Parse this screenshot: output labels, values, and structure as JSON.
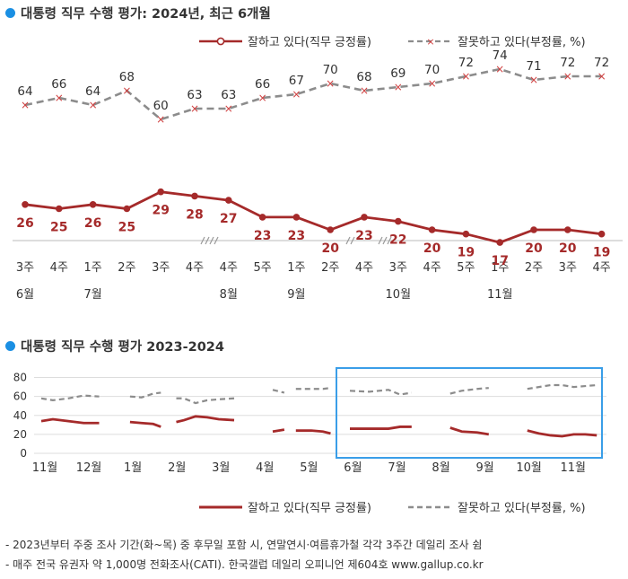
{
  "chart_data": [
    {
      "type": "line",
      "title": "대통령 직무 수행 평가: 2024년, 최근 6개월",
      "categories": [
        "3주",
        "4주",
        "1주",
        "2주",
        "3주",
        "4주",
        "4주",
        "5주",
        "1주",
        "2주",
        "4주",
        "3주",
        "4주",
        "5주",
        "1주",
        "2주",
        "3주",
        "4주"
      ],
      "month_labels": [
        {
          "index": 0,
          "label": "6월"
        },
        {
          "index": 2,
          "label": "7월"
        },
        {
          "index": 6,
          "label": "8월"
        },
        {
          "index": 8,
          "label": "9월"
        },
        {
          "index": 11,
          "label": "10월"
        },
        {
          "index": 14,
          "label": "11월"
        }
      ],
      "series": [
        {
          "name": "잘하고 있다(직무 긍정률)",
          "color": "#a52a2a",
          "style": "solid",
          "values": [
            26,
            25,
            26,
            25,
            29,
            28,
            27,
            23,
            23,
            20,
            23,
            22,
            20,
            19,
            17,
            20,
            20,
            19
          ]
        },
        {
          "name": "잘못하고 있다(부정률, %)",
          "color": "#8c8c8c",
          "style": "dashed",
          "values": [
            64,
            66,
            64,
            68,
            60,
            63,
            63,
            66,
            67,
            70,
            68,
            69,
            70,
            72,
            74,
            71,
            72,
            72
          ]
        }
      ],
      "ylim": [
        0,
        80
      ],
      "legend": "top-right"
    },
    {
      "type": "line",
      "title": "대통령 직무 수행 평가 2023-2024",
      "x_labels": [
        "11월",
        "12월",
        "1월",
        "2월",
        "3월",
        "4월",
        "5월",
        "6월",
        "7월",
        "8월",
        "9월",
        "10월",
        "11월"
      ],
      "y_ticks": [
        0,
        20,
        40,
        60,
        80
      ],
      "ylim": [
        0,
        90
      ],
      "grid": true,
      "legend": "bottom",
      "series": [
        {
          "name": "잘하고 있다(직무 긍정률)",
          "color": "#a52a2a",
          "style": "solid",
          "segments": [
            [
              [
                0.0,
                34
              ],
              [
                0.3,
                36
              ],
              [
                0.7,
                34
              ],
              [
                1.1,
                32
              ],
              [
                1.5,
                32
              ]
            ],
            [
              [
                2.3,
                33
              ],
              [
                2.6,
                32
              ],
              [
                2.9,
                31
              ],
              [
                3.1,
                28
              ]
            ],
            [
              [
                3.5,
                33
              ],
              [
                3.7,
                35
              ],
              [
                4.0,
                39
              ],
              [
                4.3,
                38
              ],
              [
                4.6,
                36
              ],
              [
                5.0,
                35
              ]
            ],
            [
              [
                6.0,
                23
              ],
              [
                6.3,
                25
              ]
            ],
            [
              [
                6.6,
                24
              ],
              [
                7.0,
                24
              ],
              [
                7.3,
                23
              ],
              [
                7.5,
                21
              ]
            ],
            [
              [
                8.0,
                26
              ],
              [
                8.5,
                26
              ],
              [
                9.0,
                26
              ],
              [
                9.3,
                28
              ],
              [
                9.6,
                28
              ]
            ],
            [
              [
                10.6,
                27
              ],
              [
                10.9,
                23
              ],
              [
                11.3,
                22
              ],
              [
                11.6,
                20
              ]
            ],
            [
              [
                12.6,
                24
              ],
              [
                12.9,
                21
              ],
              [
                13.2,
                19
              ],
              [
                13.5,
                18
              ],
              [
                13.8,
                20
              ],
              [
                14.1,
                20
              ],
              [
                14.4,
                19
              ]
            ]
          ]
        },
        {
          "name": "잘못하고 있다(부정률, %)",
          "color": "#8c8c8c",
          "style": "dashed",
          "segments": [
            [
              [
                0.0,
                58
              ],
              [
                0.3,
                56
              ],
              [
                0.7,
                58
              ],
              [
                1.1,
                61
              ],
              [
                1.5,
                60
              ]
            ],
            [
              [
                2.3,
                60
              ],
              [
                2.6,
                59
              ],
              [
                2.9,
                63
              ],
              [
                3.1,
                64
              ]
            ],
            [
              [
                3.5,
                58
              ],
              [
                3.7,
                58
              ],
              [
                4.0,
                53
              ],
              [
                4.3,
                56
              ],
              [
                4.6,
                57
              ],
              [
                5.0,
                58
              ]
            ],
            [
              [
                6.0,
                67
              ],
              [
                6.3,
                64
              ]
            ],
            [
              [
                6.6,
                68
              ],
              [
                7.0,
                68
              ],
              [
                7.3,
                68
              ],
              [
                7.5,
                69
              ]
            ],
            [
              [
                8.0,
                66
              ],
              [
                8.5,
                65
              ],
              [
                9.0,
                67
              ],
              [
                9.3,
                62
              ],
              [
                9.6,
                64
              ]
            ],
            [
              [
                10.6,
                63
              ],
              [
                10.9,
                66
              ],
              [
                11.3,
                68
              ],
              [
                11.6,
                69
              ]
            ],
            [
              [
                12.6,
                68
              ],
              [
                12.9,
                70
              ],
              [
                13.2,
                72
              ],
              [
                13.5,
                72
              ],
              [
                13.8,
                70
              ],
              [
                14.1,
                71
              ],
              [
                14.4,
                72
              ]
            ]
          ]
        }
      ]
    }
  ],
  "notes": {
    "line1": "- 2023년부터 주중 조사 기간(화~목) 중 후무일 포함 시, 연말연시·여름휴가철 각각 3주간 데일리 조사 쉼",
    "line2": "- 매주 전국 유권자 약 1,000명 전화조사(CATI). 한국갤럽 데일리 오피니언 제604호 www.gallup.co.kr"
  }
}
